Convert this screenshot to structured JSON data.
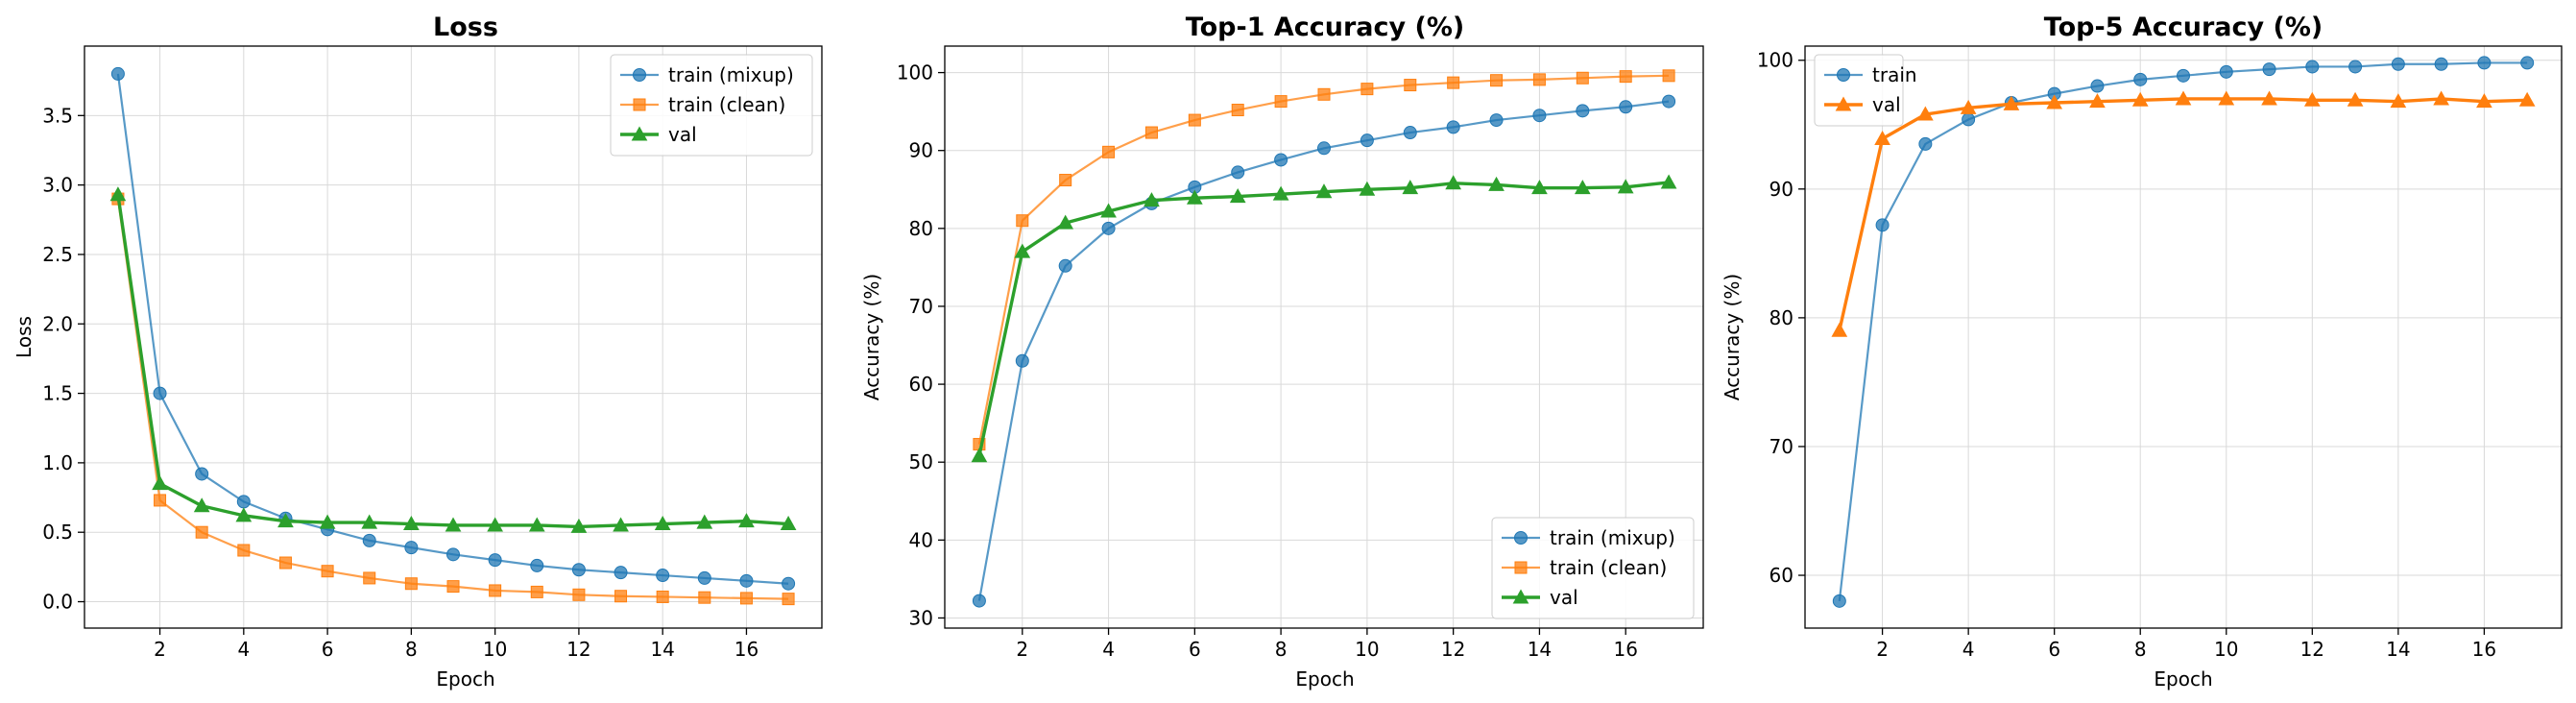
{
  "chart_data": [
    {
      "type": "line",
      "title": "Loss",
      "xlabel": "Epoch",
      "ylabel": "Loss",
      "xlim": [
        0.2,
        17.8
      ],
      "ylim": [
        -0.19,
        4.0
      ],
      "xticks": [
        2,
        4,
        6,
        8,
        10,
        12,
        14,
        16
      ],
      "yticks": [
        0.0,
        0.5,
        1.0,
        1.5,
        2.0,
        2.5,
        3.0,
        3.5
      ],
      "ytick_labels": [
        "0.0",
        "0.5",
        "1.0",
        "1.5",
        "2.0",
        "2.5",
        "3.0",
        "3.5"
      ],
      "grid": true,
      "legend_position": "top-right",
      "x": [
        1,
        2,
        3,
        4,
        5,
        6,
        7,
        8,
        9,
        10,
        11,
        12,
        13,
        14,
        15,
        16,
        17
      ],
      "series": [
        {
          "name": "train (mixup)",
          "color": "#1f77b4",
          "marker": "circle",
          "emphasis": false,
          "values": [
            3.8,
            1.5,
            0.92,
            0.72,
            0.6,
            0.52,
            0.44,
            0.39,
            0.34,
            0.3,
            0.26,
            0.23,
            0.21,
            0.19,
            0.17,
            0.15,
            0.13
          ]
        },
        {
          "name": "train (clean)",
          "color": "#ff7f0e",
          "marker": "square",
          "emphasis": false,
          "values": [
            2.9,
            0.73,
            0.5,
            0.37,
            0.28,
            0.22,
            0.17,
            0.13,
            0.11,
            0.08,
            0.07,
            0.05,
            0.04,
            0.035,
            0.03,
            0.025,
            0.02
          ]
        },
        {
          "name": "val",
          "color": "#2ca02c",
          "marker": "triangle",
          "emphasis": true,
          "values": [
            2.93,
            0.85,
            0.69,
            0.62,
            0.58,
            0.57,
            0.57,
            0.56,
            0.55,
            0.55,
            0.55,
            0.54,
            0.55,
            0.56,
            0.57,
            0.58,
            0.56
          ]
        }
      ]
    },
    {
      "type": "line",
      "title": "Top-1 Accuracy (%)",
      "xlabel": "Epoch",
      "ylabel": "Accuracy (%)",
      "xlim": [
        0.2,
        17.8
      ],
      "ylim": [
        28.7,
        103.4
      ],
      "xticks": [
        2,
        4,
        6,
        8,
        10,
        12,
        14,
        16
      ],
      "yticks": [
        30,
        40,
        50,
        60,
        70,
        80,
        90,
        100
      ],
      "ytick_labels": [
        "30",
        "40",
        "50",
        "60",
        "70",
        "80",
        "90",
        "100"
      ],
      "grid": true,
      "legend_position": "bottom-right",
      "x": [
        1,
        2,
        3,
        4,
        5,
        6,
        7,
        8,
        9,
        10,
        11,
        12,
        13,
        14,
        15,
        16,
        17
      ],
      "series": [
        {
          "name": "train (mixup)",
          "color": "#1f77b4",
          "marker": "circle",
          "emphasis": false,
          "values": [
            32.2,
            63.0,
            75.2,
            80.0,
            83.2,
            85.3,
            87.2,
            88.8,
            90.3,
            91.3,
            92.3,
            93.0,
            93.9,
            94.5,
            95.1,
            95.6,
            96.3
          ]
        },
        {
          "name": "train (clean)",
          "color": "#ff7f0e",
          "marker": "square",
          "emphasis": false,
          "values": [
            52.3,
            81.0,
            86.2,
            89.8,
            92.3,
            93.9,
            95.2,
            96.3,
            97.2,
            97.9,
            98.4,
            98.7,
            99.0,
            99.1,
            99.3,
            99.5,
            99.6
          ]
        },
        {
          "name": "val",
          "color": "#2ca02c",
          "marker": "triangle",
          "emphasis": true,
          "values": [
            50.8,
            77.0,
            80.7,
            82.2,
            83.6,
            83.9,
            84.1,
            84.4,
            84.7,
            85.0,
            85.2,
            85.8,
            85.6,
            85.2,
            85.2,
            85.3,
            85.9
          ]
        }
      ]
    },
    {
      "type": "line",
      "title": "Top-5 Accuracy (%)",
      "xlabel": "Epoch",
      "ylabel": "Accuracy (%)",
      "xlim": [
        0.2,
        17.8
      ],
      "ylim": [
        55.9,
        101.1
      ],
      "xticks": [
        2,
        4,
        6,
        8,
        10,
        12,
        14,
        16
      ],
      "yticks": [
        60,
        70,
        80,
        90,
        100
      ],
      "ytick_labels": [
        "60",
        "70",
        "80",
        "90",
        "100"
      ],
      "grid": true,
      "legend_position": "top-left",
      "x": [
        1,
        2,
        3,
        4,
        5,
        6,
        7,
        8,
        9,
        10,
        11,
        12,
        13,
        14,
        15,
        16,
        17
      ],
      "series": [
        {
          "name": "train",
          "color": "#1f77b4",
          "marker": "circle",
          "emphasis": false,
          "values": [
            58.0,
            87.2,
            93.5,
            95.4,
            96.7,
            97.4,
            98.0,
            98.5,
            98.8,
            99.1,
            99.3,
            99.5,
            99.5,
            99.7,
            99.7,
            99.8,
            99.8
          ]
        },
        {
          "name": "val",
          "color": "#ff7f0e",
          "marker": "triangle",
          "emphasis": true,
          "values": [
            79.0,
            93.9,
            95.8,
            96.3,
            96.6,
            96.7,
            96.8,
            96.9,
            97.0,
            97.0,
            97.0,
            96.9,
            96.9,
            96.8,
            97.0,
            96.8,
            96.9
          ]
        }
      ]
    }
  ]
}
